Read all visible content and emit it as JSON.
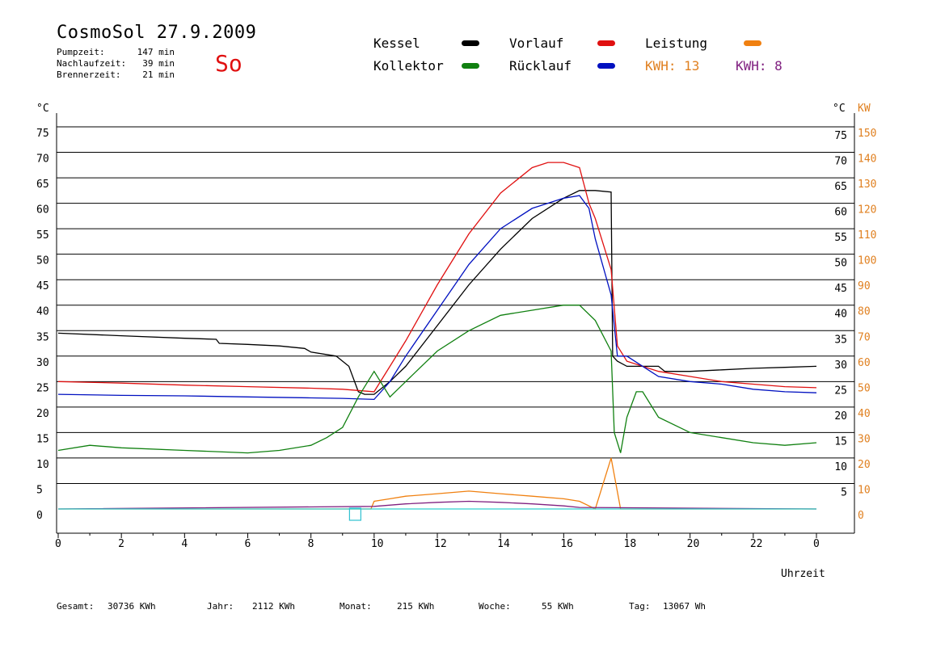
{
  "header": {
    "title": "CosmoSol 27.9.2009",
    "weekday": "So",
    "stats": [
      {
        "label": "Pumpzeit:",
        "value": "147 min"
      },
      {
        "label": "Nachlaufzeit:",
        "value": "39 min"
      },
      {
        "label": "Brennerzeit:",
        "value": "21 min"
      }
    ]
  },
  "legend": [
    {
      "name": "Kessel",
      "color": "#000000"
    },
    {
      "name": "Vorlauf",
      "color": "#e01010"
    },
    {
      "name": "Leistung",
      "color": "#f08010"
    },
    {
      "name": "Kollektor",
      "color": "#108010"
    },
    {
      "name": "Rücklauf",
      "color": "#0010c0"
    }
  ],
  "kwh": [
    {
      "label": "KWH: 13",
      "color": "#e08020"
    },
    {
      "label": "KWH: 8",
      "color": "#802080"
    }
  ],
  "footer": [
    {
      "label": "Gesamt:",
      "value": "30736 KWh"
    },
    {
      "label": "Jahr:",
      "value": "2112 KWh"
    },
    {
      "label": "Monat:",
      "value": "215 KWh"
    },
    {
      "label": "Woche:",
      "value": "55 KWh"
    },
    {
      "label": "Tag:",
      "value": "13067 Wh"
    }
  ],
  "chart_data": {
    "type": "line",
    "xlabel": "Uhrzeit",
    "ylabel_left": "°C",
    "ylabel_right_temp": "°C",
    "ylabel_right_power": "KW",
    "xlim": [
      0,
      24
    ],
    "ylim": [
      -5,
      80
    ],
    "x_ticks": [
      "0",
      "2",
      "4",
      "6",
      "8",
      "10",
      "12",
      "14",
      "16",
      "18",
      "20",
      "22",
      "0"
    ],
    "y_ticks_left": [
      "0",
      "5",
      "10",
      "15",
      "20",
      "25",
      "30",
      "35",
      "40",
      "45",
      "50",
      "55",
      "60",
      "65",
      "70",
      "75"
    ],
    "y_ticks_right_temp": [
      "5",
      "10",
      "15",
      "20",
      "25",
      "30",
      "35",
      "40",
      "45",
      "50",
      "55",
      "60",
      "65",
      "70",
      "75"
    ],
    "y_ticks_right_power": [
      "0",
      "10",
      "20",
      "30",
      "40",
      "50",
      "60",
      "70",
      "80",
      "90",
      "100",
      "110",
      "120",
      "130",
      "140",
      "150"
    ],
    "grid": "horizontal",
    "series": [
      {
        "name": "Kessel",
        "color": "#000000",
        "x": [
          0,
          2,
          4,
          5,
          5.1,
          6,
          7,
          7.8,
          8,
          8.8,
          9.2,
          9.5,
          9.7,
          10,
          10.5,
          11,
          12,
          13,
          14,
          15,
          16,
          16.5,
          17,
          17.5,
          17.55,
          17.7,
          18,
          18.5,
          19,
          19.2,
          20,
          21,
          22,
          23,
          24
        ],
        "y": [
          34.5,
          34,
          33.5,
          33.3,
          32.5,
          32.3,
          32,
          31.5,
          30.8,
          30,
          28,
          23,
          22.5,
          22.5,
          25,
          28,
          36,
          44,
          51,
          57,
          61,
          62.5,
          62.5,
          62.2,
          30,
          29,
          28,
          28,
          28,
          27,
          27,
          27.3,
          27.6,
          27.8,
          28
        ]
      },
      {
        "name": "Vorlauf",
        "color": "#e01010",
        "x": [
          0,
          2,
          4,
          6,
          8,
          9,
          10,
          10.5,
          11,
          12,
          13,
          14,
          15,
          15.5,
          16,
          16.5,
          16.8,
          17,
          17.5,
          17.7,
          18,
          19,
          20,
          21,
          22,
          23,
          24
        ],
        "y": [
          25,
          24.7,
          24.3,
          24,
          23.7,
          23.5,
          23,
          28,
          33,
          44,
          54,
          62,
          67,
          68,
          68,
          67,
          60,
          57,
          47,
          32,
          29,
          27,
          26,
          25,
          24.5,
          24,
          23.8
        ]
      },
      {
        "name": "Rücklauf",
        "color": "#0010c0",
        "x": [
          0,
          2,
          4,
          6,
          8,
          9,
          10,
          10.5,
          11,
          12,
          13,
          14,
          15,
          16,
          16.5,
          16.8,
          17,
          17.5,
          17.7,
          18,
          18.5,
          19,
          20,
          21,
          22,
          23,
          24
        ],
        "y": [
          22.5,
          22.3,
          22.2,
          22,
          21.8,
          21.7,
          21.5,
          25,
          30,
          39,
          48,
          55,
          59,
          61,
          61.5,
          59,
          53,
          42,
          30,
          30,
          28,
          26,
          25,
          24.5,
          23.5,
          23,
          22.8
        ]
      },
      {
        "name": "Kollektor",
        "color": "#108010",
        "x": [
          0,
          1,
          2,
          4,
          6,
          7,
          8,
          8.5,
          9,
          9.5,
          10,
          10.5,
          11,
          12,
          13,
          14,
          15,
          16,
          16.5,
          17,
          17.5,
          17.6,
          17.8,
          18,
          18.3,
          18.5,
          19,
          20,
          21,
          22,
          23,
          24
        ],
        "y": [
          11.5,
          12.5,
          12,
          11.5,
          11,
          11.5,
          12.5,
          14,
          16,
          22,
          27,
          22,
          25,
          31,
          35,
          38,
          39,
          40,
          40,
          37,
          31,
          15,
          11,
          18,
          23,
          23,
          18,
          15,
          14,
          13,
          12.5,
          13
        ]
      },
      {
        "name": "Leistung",
        "color": "#f08010",
        "x": [
          0,
          9.9,
          10,
          10.5,
          11,
          12,
          13,
          14,
          15,
          16,
          16.5,
          17,
          17.5,
          17.8,
          17.9,
          24
        ],
        "y": [
          0,
          0,
          1.5,
          2,
          2.5,
          3,
          3.5,
          3,
          2.5,
          2,
          1.5,
          0,
          10,
          0,
          0,
          0
        ]
      },
      {
        "name": "KWH-2",
        "color": "#802080",
        "x": [
          0,
          10,
          11,
          12,
          13,
          14,
          15,
          16,
          16.5,
          24
        ],
        "y": [
          0,
          0.5,
          1,
          1.3,
          1.5,
          1.3,
          1,
          0.6,
          0.3,
          0
        ]
      },
      {
        "name": "Baseline",
        "color": "#30d0d0",
        "x": [
          0,
          24
        ],
        "y": [
          0,
          0
        ]
      }
    ],
    "marker": {
      "x": 9.4,
      "y": -1,
      "color": "#30c0d0"
    }
  }
}
